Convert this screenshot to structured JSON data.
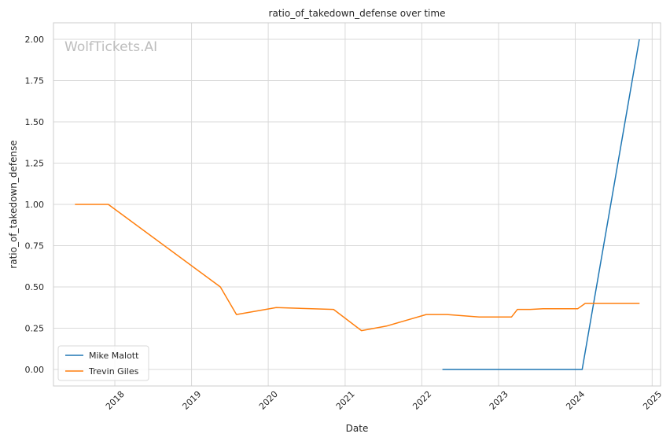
{
  "chart_data": {
    "type": "line",
    "title": "ratio_of_takedown_defense over time",
    "xlabel": "Date",
    "ylabel": "ratio_of_takedown_defense",
    "watermark": "WolfTickets.AI",
    "xlim": [
      "2017-03-15",
      "2025-02-10"
    ],
    "ylim": [
      -0.1,
      2.1
    ],
    "x_ticks": [
      "2018",
      "2019",
      "2020",
      "2021",
      "2022",
      "2023",
      "2024",
      "2025"
    ],
    "y_ticks": [
      "0.00",
      "0.25",
      "0.50",
      "0.75",
      "1.00",
      "1.25",
      "1.50",
      "1.75",
      "2.00"
    ],
    "grid": true,
    "legend": "bottom-left",
    "series": [
      {
        "name": "Mike Malott",
        "color": "#1f77b4",
        "x": [
          "2022-04-09",
          "2022-09-01",
          "2023-02-01",
          "2023-08-01",
          "2024-02-03",
          "2024-11-01"
        ],
        "y": [
          0.0,
          0.0,
          0.0,
          0.0,
          0.0,
          2.0
        ]
      },
      {
        "name": "Trevin Giles",
        "color": "#ff7f0e",
        "x": [
          "2017-06-25",
          "2017-12-01",
          "2019-05-18",
          "2019-08-03",
          "2020-02-08",
          "2020-11-07",
          "2021-03-20",
          "2021-07-17",
          "2022-01-22",
          "2022-05-01",
          "2022-10-01",
          "2023-03-04",
          "2023-04-01",
          "2023-06-01",
          "2023-08-01",
          "2024-01-13",
          "2024-02-17",
          "2024-11-02"
        ],
        "y": [
          1.0,
          1.0,
          0.5,
          0.333,
          0.375,
          0.364,
          0.235,
          0.263,
          0.333,
          0.333,
          0.318,
          0.318,
          0.364,
          0.364,
          0.368,
          0.368,
          0.4,
          0.4
        ]
      }
    ]
  }
}
